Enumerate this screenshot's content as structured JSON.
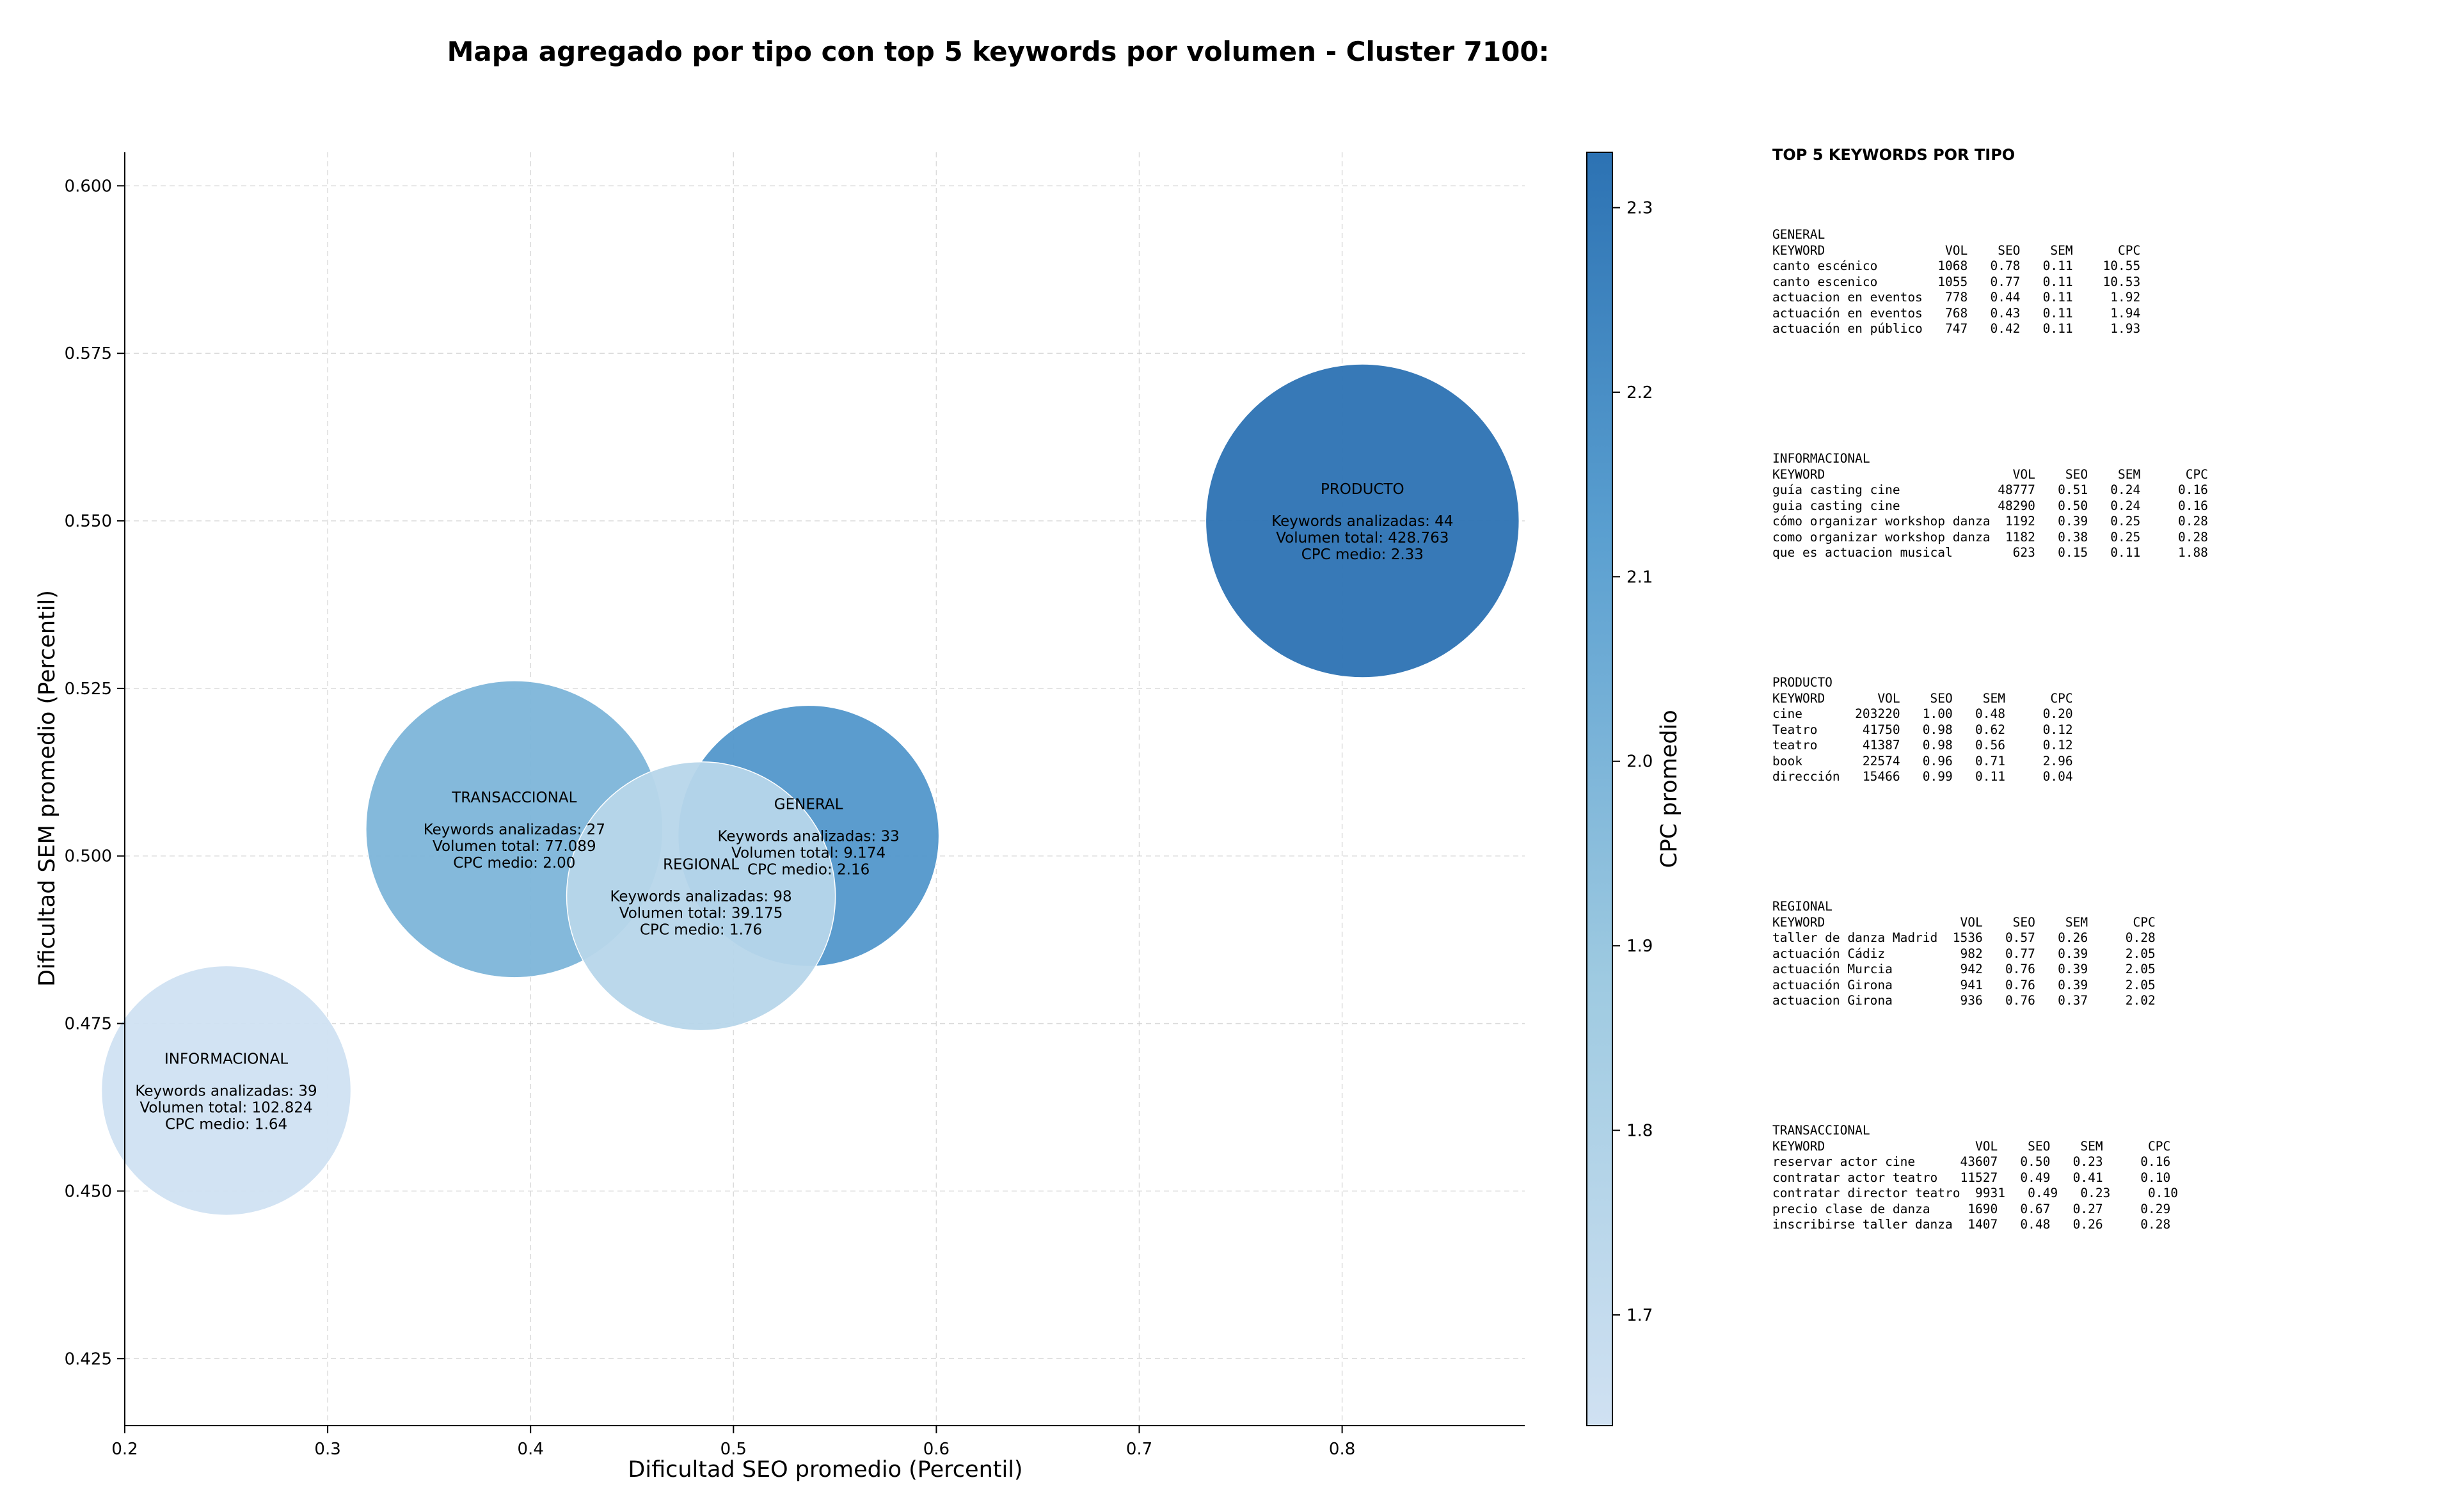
{
  "chart_data": {
    "type": "scatter",
    "title": "Mapa agregado por tipo con top 5 keywords por volumen - Cluster 7100:",
    "xlabel": "Dificultad SEO promedio (Percentil)",
    "ylabel": "Dificultad SEM promedio (Percentil)",
    "xlim": [
      0.2,
      0.89
    ],
    "ylim": [
      0.415,
      0.605
    ],
    "x_ticks": [
      "0.2",
      "0.3",
      "0.4",
      "0.5",
      "0.6",
      "0.7",
      "0.8"
    ],
    "y_ticks": [
      "0.425",
      "0.450",
      "0.475",
      "0.500",
      "0.525",
      "0.550",
      "0.575",
      "0.600"
    ],
    "grid": true,
    "colorbar": {
      "label": "CPC promedio",
      "min": 1.64,
      "max": 2.33,
      "ticks": [
        "1.7",
        "1.8",
        "1.9",
        "2.0",
        "2.1",
        "2.2",
        "2.3"
      ],
      "color_low": "#d0e1f2",
      "color_high": "#2c72b3"
    },
    "points": [
      {
        "name": "INFORMACIONAL",
        "x": 0.25,
        "y": 0.465,
        "keywords": 39,
        "volume": 102824,
        "cpc": 1.64,
        "lines": [
          "Keywords analizadas: 39",
          "Volumen total: 102.824",
          "CPC medio: 1.64"
        ]
      },
      {
        "name": "TRANSACCIONAL",
        "x": 0.392,
        "y": 0.504,
        "keywords": 27,
        "volume": 77089,
        "cpc": 2.0,
        "lines": [
          "Keywords analizadas: 27",
          "Volumen total: 77.089",
          "CPC medio: 2.00"
        ]
      },
      {
        "name": "GENERAL",
        "x": 0.537,
        "y": 0.503,
        "keywords": 33,
        "volume": 9174,
        "cpc": 2.16,
        "lines": [
          "Keywords analizadas: 33",
          "Volumen total: 9.174",
          "CPC medio: 2.16"
        ]
      },
      {
        "name": "REGIONAL",
        "x": 0.484,
        "y": 0.494,
        "keywords": 98,
        "volume": 39175,
        "cpc": 1.76,
        "lines": [
          "Keywords analizadas: 98",
          "Volumen total: 39.175",
          "CPC medio: 1.76"
        ]
      },
      {
        "name": "PRODUCTO",
        "x": 0.81,
        "y": 0.55,
        "keywords": 44,
        "volume": 428763,
        "cpc": 2.33,
        "lines": [
          "Keywords analizadas: 44",
          "Volumen total: 428.763",
          "CPC medio: 2.33"
        ]
      }
    ]
  },
  "top_keywords": {
    "heading": "TOP 5 KEYWORDS POR TIPO",
    "blocks": [
      {
        "name": "GENERAL",
        "text": "GENERAL\nKEYWORD                VOL    SEO    SEM      CPC\ncanto escénico        1068   0.78   0.11    10.55\ncanto escenico        1055   0.77   0.11    10.53\nactuacion en eventos   778   0.44   0.11     1.92\nactuación en eventos   768   0.43   0.11     1.94\nactuación en público   747   0.42   0.11     1.93"
      },
      {
        "name": "INFORMACIONAL",
        "text": "INFORMACIONAL\nKEYWORD                         VOL    SEO    SEM      CPC\nguía casting cine             48777   0.51   0.24     0.16\nguia casting cine             48290   0.50   0.24     0.16\ncómo organizar workshop danza  1192   0.39   0.25     0.28\ncomo organizar workshop danza  1182   0.38   0.25     0.28\nque es actuacion musical        623   0.15   0.11     1.88"
      },
      {
        "name": "PRODUCTO",
        "text": "PRODUCTO\nKEYWORD       VOL    SEO    SEM      CPC\ncine       203220   1.00   0.48     0.20\nTeatro      41750   0.98   0.62     0.12\nteatro      41387   0.98   0.56     0.12\nbook        22574   0.96   0.71     2.96\ndirección   15466   0.99   0.11     0.04"
      },
      {
        "name": "REGIONAL",
        "text": "REGIONAL\nKEYWORD                  VOL    SEO    SEM      CPC\ntaller de danza Madrid  1536   0.57   0.26     0.28\nactuación Cádiz          982   0.77   0.39     2.05\nactuación Murcia         942   0.76   0.39     2.05\nactuación Girona         941   0.76   0.39     2.05\nactuacion Girona         936   0.76   0.37     2.02"
      },
      {
        "name": "TRANSACCIONAL",
        "text": "TRANSACCIONAL\nKEYWORD                    VOL    SEO    SEM      CPC\nreservar actor cine      43607   0.50   0.23     0.16\ncontratar actor teatro   11527   0.49   0.41     0.10\ncontratar director teatro  9931   0.49   0.23     0.10\nprecio clase de danza     1690   0.67   0.27     0.29\ninscribirse taller danza  1407   0.48   0.26     0.28"
      }
    ]
  }
}
